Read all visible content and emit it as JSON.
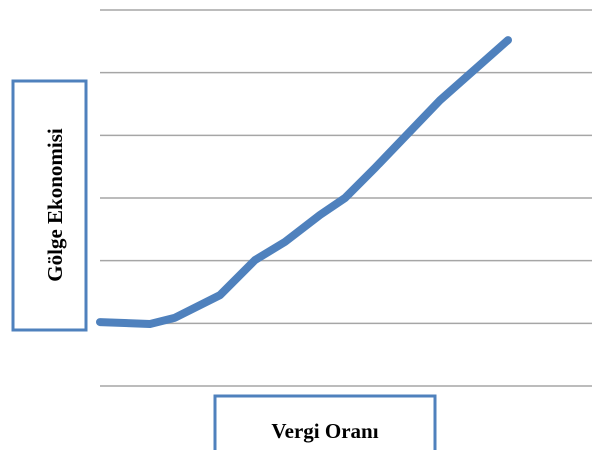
{
  "chart_data": {
    "type": "line",
    "y_label": "Gölge Ekonomisi",
    "x_label": "Vergi Oranı",
    "x": [
      0,
      5,
      7.5,
      12,
      15.5,
      18.5,
      22,
      24.5,
      27.5,
      34,
      40.8
    ],
    "series": [
      {
        "color": "#4f81bd",
        "values": [
          1.02,
          0.99,
          1.09,
          1.45,
          2.01,
          2.3,
          2.73,
          3.0,
          3.48,
          4.56,
          5.52
        ]
      }
    ],
    "xlim": [
      0,
      49.2
    ],
    "ylim": [
      0,
      6
    ],
    "yticks": [
      0,
      1,
      2,
      3,
      4,
      5,
      6
    ],
    "grid": true
  }
}
